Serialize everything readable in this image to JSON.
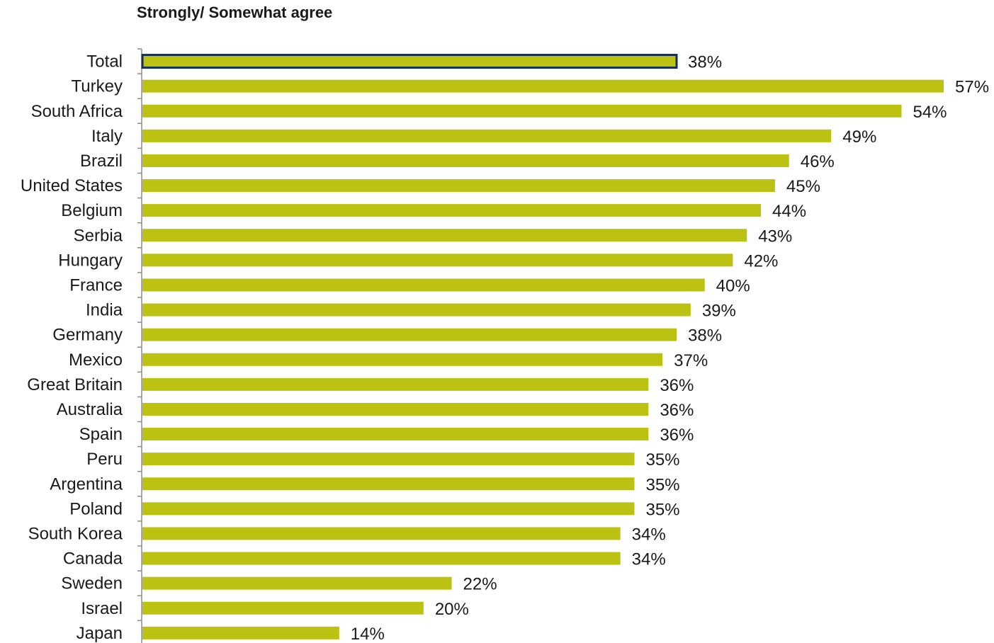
{
  "chart_data": {
    "type": "bar",
    "orientation": "horizontal",
    "title": "Strongly/ Somewhat agree",
    "categories": [
      "Total",
      "Turkey",
      "South Africa",
      "Italy",
      "Brazil",
      "United States",
      "Belgium",
      "Serbia",
      "Hungary",
      "France",
      "India",
      "Germany",
      "Mexico",
      "Great Britain",
      "Australia",
      "Spain",
      "Peru",
      "Argentina",
      "Poland",
      "South Korea",
      "Canada",
      "Sweden",
      "Israel",
      "Japan"
    ],
    "values": [
      38,
      57,
      54,
      49,
      46,
      45,
      44,
      43,
      42,
      40,
      39,
      38,
      37,
      36,
      36,
      36,
      35,
      35,
      35,
      34,
      34,
      22,
      20,
      14
    ],
    "labels": [
      "38%",
      "57%",
      "54%",
      "49%",
      "46%",
      "45%",
      "44%",
      "43%",
      "42%",
      "40%",
      "39%",
      "38%",
      "37%",
      "36%",
      "36%",
      "36%",
      "35%",
      "35%",
      "35%",
      "34%",
      "34%",
      "22%",
      "20%",
      "14%"
    ],
    "highlight_category": "Total",
    "bar_color": "#bcc212",
    "highlight_border_color": "#14305a",
    "grid": false
  }
}
